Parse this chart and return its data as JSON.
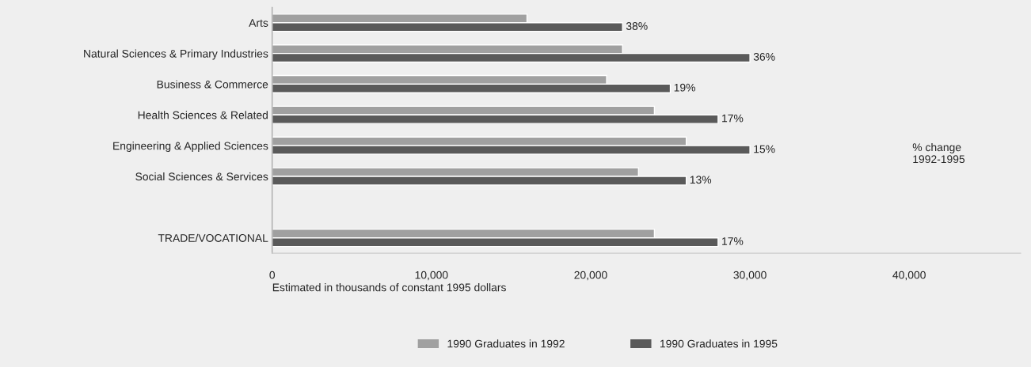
{
  "chart_data": {
    "type": "bar",
    "orientation": "horizontal",
    "categories": [
      "Arts",
      "Natural Sciences & Primary Industries",
      "Business & Commerce",
      "Health Sciences & Related",
      "Engineering & Applied Sciences",
      "Social Sciences & Services",
      null,
      "TRADE/VOCATIONAL"
    ],
    "series": [
      {
        "name": "1990 Graduates in 1992",
        "color": "#a0a0a0",
        "values": [
          16000,
          22000,
          21000,
          24000,
          26000,
          23000,
          null,
          24000
        ]
      },
      {
        "name": "1990 Graduates in 1995",
        "color": "#5a5a5a",
        "values": [
          22000,
          30000,
          25000,
          28000,
          30000,
          26000,
          null,
          28000
        ]
      }
    ],
    "xlabel": "Estimated in thousands of constant 1995 dollars",
    "xlim": [
      0,
      47000
    ],
    "xticks": [
      0,
      {
        "value": 10000,
        "label": "10,000"
      },
      {
        "value": 20000,
        "label": "20,000"
      },
      {
        "value": 30000,
        "label": "30,000"
      },
      {
        "value": 40000,
        "label": "40,000"
      }
    ],
    "annotations": [
      "% change\n1992-1995",
      {
        "text": "38%",
        "x": 22000,
        "y": "Arts"
      },
      {
        "text": "36%",
        "x": 30000,
        "y": "Natural Sciences & Primary Industries"
      },
      {
        "text": "19%",
        "x": 25000,
        "y": "Business & Commerce"
      },
      {
        "text": "17%",
        "x": 28000,
        "y": "Health Sciences & Related"
      },
      {
        "text": "15%",
        "x": 30000,
        "y": "Engineering & Applied Sciences"
      },
      {
        "text": "13%",
        "x": 26000,
        "y": "Social Sciences & Services"
      },
      {
        "text": "17%",
        "x": 28000,
        "y": "TRADE/VOCATIONAL"
      }
    ],
    "legend": "bottom",
    "grid": false
  }
}
